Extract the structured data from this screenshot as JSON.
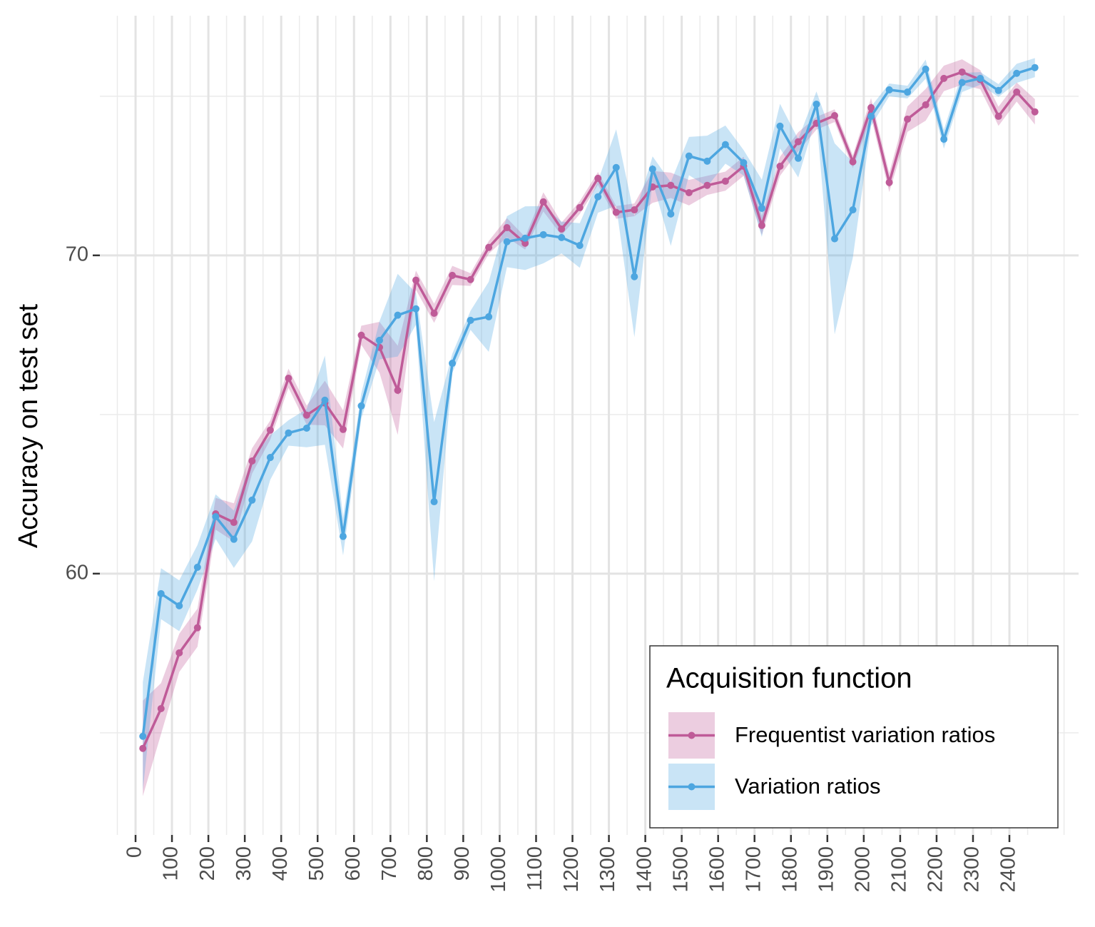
{
  "chart_data": {
    "type": "line",
    "y_label": "Accuracy on test set",
    "legend_title": "Acquisition function",
    "legend_position": "bottom-right",
    "grid": true,
    "xlim": [
      -98,
      2590
    ],
    "ylim": [
      51.79,
      77.53
    ],
    "xticks": [
      0,
      100,
      200,
      300,
      400,
      500,
      600,
      700,
      800,
      900,
      1000,
      1100,
      1200,
      1300,
      1400,
      1500,
      1600,
      1700,
      1800,
      1900,
      2000,
      2100,
      2200,
      2300,
      2400
    ],
    "x_minor_ticks": [
      -50,
      50,
      150,
      250,
      350,
      450,
      550,
      650,
      750,
      850,
      950,
      1050,
      1150,
      1250,
      1350,
      1450,
      1550,
      1650,
      1750,
      1850,
      1950,
      2050,
      2150,
      2250,
      2350,
      2450,
      2550
    ],
    "yticks": [
      60,
      70
    ],
    "y_minor_ticks": [
      55,
      65,
      75
    ],
    "x": [
      20,
      70,
      120,
      170,
      220,
      270,
      320,
      370,
      420,
      470,
      520,
      570,
      620,
      670,
      720,
      770,
      820,
      870,
      920,
      970,
      1020,
      1070,
      1120,
      1170,
      1220,
      1270,
      1320,
      1370,
      1420,
      1470,
      1520,
      1570,
      1620,
      1670,
      1720,
      1770,
      1820,
      1870,
      1920,
      1970,
      2020,
      2070,
      2120,
      2170,
      2220,
      2270,
      2320,
      2370,
      2420,
      2470
    ],
    "series": [
      {
        "name": "Frequentist variation ratios",
        "color": "#bf5b98",
        "values": [
          54.51,
          55.76,
          57.51,
          58.3,
          61.88,
          61.61,
          63.54,
          64.51,
          66.14,
          64.98,
          65.36,
          64.53,
          67.49,
          67.11,
          65.76,
          69.22,
          68.18,
          69.37,
          69.24,
          70.25,
          70.87,
          70.38,
          71.68,
          70.83,
          71.5,
          72.42,
          71.35,
          71.43,
          72.15,
          72.2,
          71.97,
          72.2,
          72.33,
          72.8,
          70.94,
          72.8,
          73.57,
          74.15,
          74.39,
          72.94,
          74.64,
          72.29,
          74.28,
          74.73,
          75.56,
          75.76,
          75.52,
          74.37,
          75.13,
          74.51
        ],
        "error": [
          1.5,
          0.8,
          0.6,
          0.6,
          0.5,
          0.6,
          0.4,
          0.3,
          0.3,
          0.3,
          0.7,
          0.6,
          0.3,
          0.8,
          1.4,
          0.3,
          0.3,
          0.3,
          0.2,
          0.2,
          0.3,
          0.2,
          0.3,
          0.2,
          0.2,
          0.2,
          0.2,
          0.2,
          0.5,
          0.4,
          0.4,
          0.3,
          0.3,
          0.3,
          0.3,
          0.3,
          0.3,
          0.2,
          0.2,
          0.2,
          0.3,
          0.3,
          0.4,
          0.5,
          0.4,
          0.4,
          0.3,
          0.3,
          0.3,
          0.4
        ]
      },
      {
        "name": "Variation ratios",
        "color": "#4da6e0",
        "values": [
          54.89,
          59.37,
          58.99,
          60.2,
          61.79,
          61.08,
          62.31,
          63.65,
          64.42,
          64.57,
          65.45,
          61.17,
          65.27,
          67.33,
          68.12,
          68.32,
          62.26,
          66.61,
          67.96,
          68.07,
          70.43,
          70.54,
          70.65,
          70.56,
          70.31,
          71.84,
          72.76,
          69.33,
          72.71,
          71.3,
          73.12,
          72.96,
          73.48,
          72.91,
          71.48,
          74.06,
          73.05,
          74.75,
          70.52,
          71.43,
          74.37,
          75.2,
          75.13,
          75.85,
          73.65,
          75.43,
          75.56,
          75.18,
          75.72,
          75.9
        ],
        "error": [
          1.7,
          0.8,
          0.8,
          0.7,
          0.7,
          0.9,
          1.3,
          0.7,
          0.4,
          0.6,
          1.4,
          0.6,
          0.4,
          0.6,
          1.3,
          0.5,
          2.5,
          0.3,
          0.3,
          1.1,
          0.8,
          1.0,
          0.9,
          0.5,
          0.7,
          0.5,
          1.2,
          1.9,
          0.4,
          1.0,
          0.6,
          0.8,
          0.6,
          0.4,
          0.9,
          0.7,
          0.6,
          0.4,
          3.0,
          1.5,
          0.3,
          0.2,
          0.2,
          0.3,
          0.3,
          0.3,
          0.2,
          0.2,
          0.3,
          0.3
        ]
      }
    ]
  }
}
